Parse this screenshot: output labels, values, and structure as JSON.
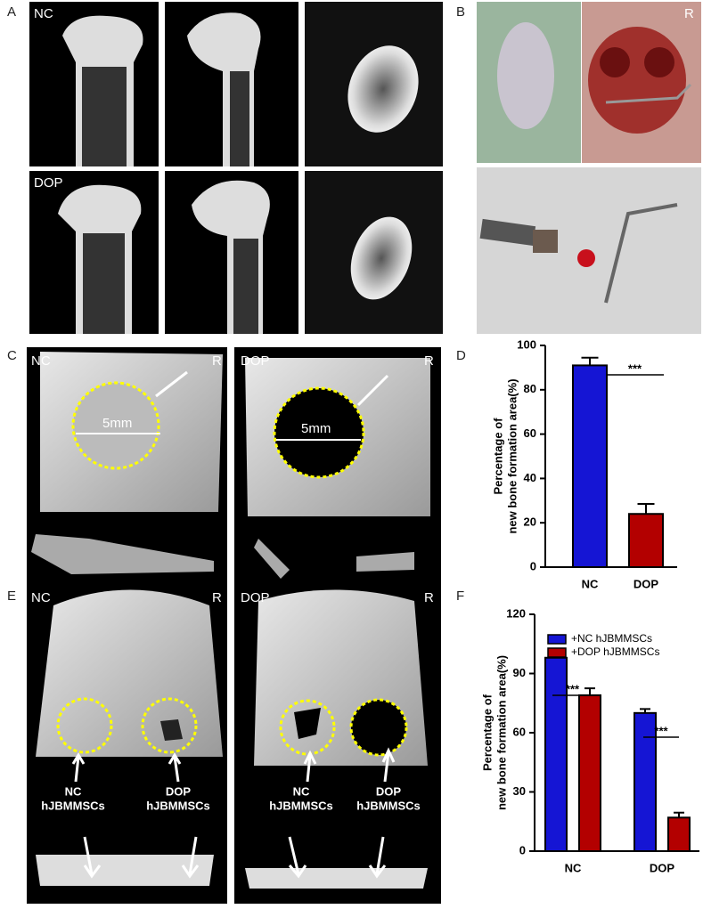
{
  "labels": [
    "A",
    "B",
    "C",
    "D",
    "E",
    "F"
  ],
  "a": {
    "row1": "NC",
    "row2": "DOP"
  },
  "b": {
    "side": "R"
  },
  "c": {
    "left": "NC",
    "right": "DOP",
    "side_left": "R",
    "side_right": "R",
    "scale_left": "5mm",
    "scale_right": "5mm"
  },
  "e": {
    "left": "NC",
    "right": "DOP",
    "side_left": "R",
    "side_right": "R",
    "left_image": [
      "NC",
      "hJBMMSCs",
      "DOP",
      "hJBMMSCs"
    ],
    "right_image": [
      "NC",
      "hJBMMSCs",
      "DOP",
      "hJBMMSCs"
    ]
  },
  "chart_data": [
    {
      "type": "bar",
      "ylabel": [
        "Percentage of",
        "new bone formation area(%)"
      ],
      "categories": [
        "NC",
        "DOP"
      ],
      "values": [
        91,
        24
      ],
      "errors": [
        3.5,
        4.5
      ],
      "colors": [
        "#1515d4",
        "#b30000"
      ],
      "ylim": [
        0,
        100
      ],
      "yticks": [
        0,
        20,
        40,
        60,
        80,
        100
      ],
      "annotations": [
        "***"
      ]
    },
    {
      "type": "bar",
      "ylabel": [
        "Percentage of",
        "new bone formation area(%)"
      ],
      "categories": [
        "NC",
        "DOP"
      ],
      "series": [
        {
          "name": "+NC hJBMMSCs",
          "color": "#1515d4",
          "values": [
            98,
            70
          ],
          "errors": [
            2,
            2
          ]
        },
        {
          "name": "+DOP hJBMMSCs",
          "color": "#b30000",
          "values": [
            79,
            17
          ],
          "errors": [
            3.5,
            2.5
          ]
        }
      ],
      "ylim": [
        0,
        120
      ],
      "yticks": [
        0,
        30,
        60,
        90,
        120
      ],
      "annotations": [
        "***",
        "***"
      ]
    }
  ]
}
